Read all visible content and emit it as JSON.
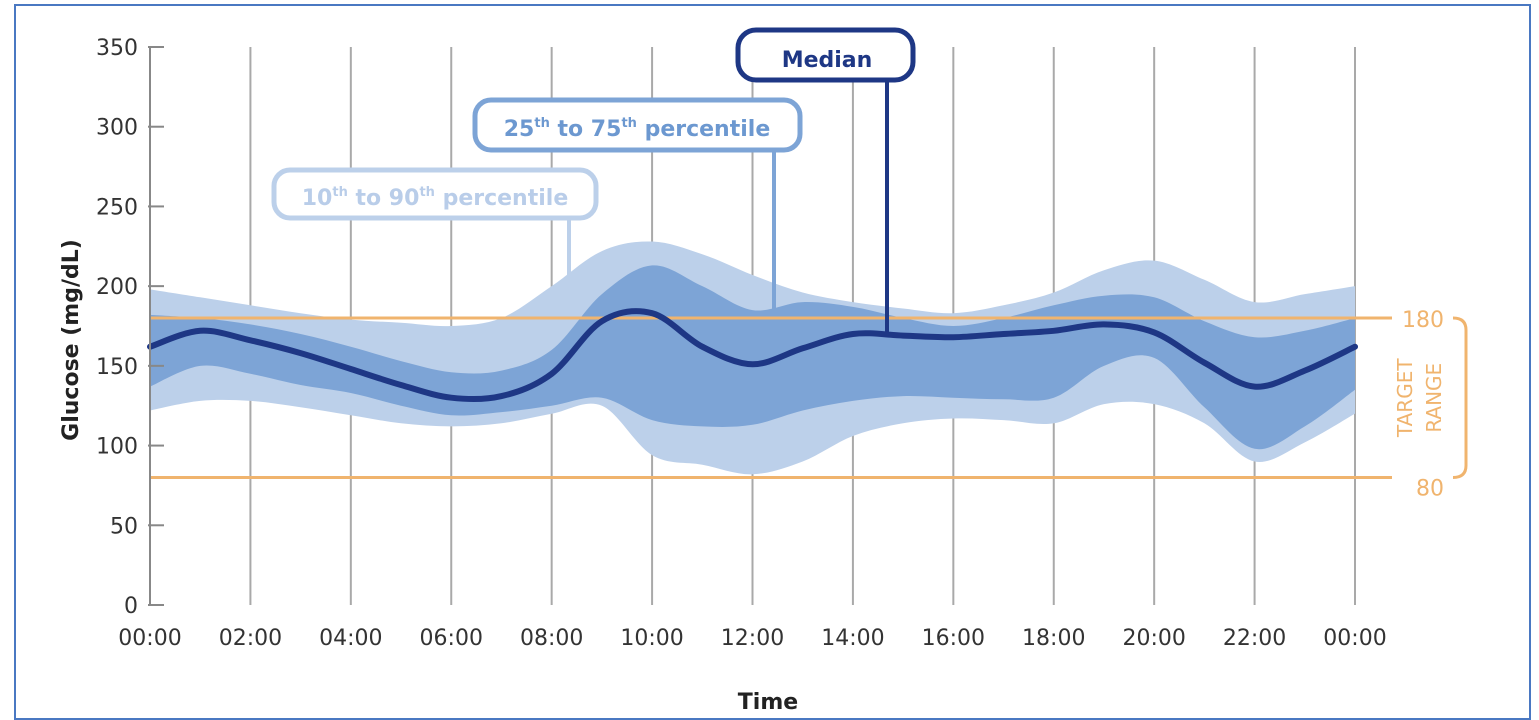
{
  "chart_data": {
    "type": "area",
    "xlabel": "Time",
    "ylabel": "Glucose (mg/dL)",
    "ylim": [
      0,
      350
    ],
    "yticks": [
      "0",
      "50",
      "100",
      "150",
      "200",
      "250",
      "300",
      "350"
    ],
    "xticks": [
      "00:00",
      "02:00",
      "04:00",
      "06:00",
      "08:00",
      "10:00",
      "12:00",
      "14:00",
      "16:00",
      "18:00",
      "20:00",
      "22:00",
      "00:00"
    ],
    "grid": "vertical",
    "x_hours": [
      0,
      1,
      2,
      3,
      4,
      5,
      6,
      7,
      8,
      9,
      10,
      11,
      12,
      13,
      14,
      15,
      16,
      17,
      18,
      19,
      20,
      21,
      22,
      23,
      24
    ],
    "series": [
      {
        "name": "10th to 90th percentile",
        "color": "#bcd0ea",
        "upper": [
          198,
          193,
          188,
          183,
          179,
          177,
          175,
          180,
          200,
          222,
          228,
          220,
          207,
          196,
          190,
          186,
          183,
          188,
          196,
          210,
          216,
          204,
          190,
          195,
          200
        ],
        "lower": [
          122,
          128,
          128,
          124,
          119,
          114,
          112,
          114,
          120,
          125,
          94,
          88,
          82,
          90,
          106,
          114,
          117,
          116,
          114,
          126,
          126,
          114,
          90,
          102,
          120
        ]
      },
      {
        "name": "25th to 75th percentile",
        "color": "#7da4d6",
        "upper": [
          182,
          180,
          176,
          170,
          162,
          153,
          146,
          147,
          160,
          195,
          213,
          200,
          185,
          190,
          187,
          180,
          175,
          180,
          188,
          194,
          193,
          178,
          168,
          172,
          180
        ],
        "lower": [
          137,
          150,
          145,
          138,
          133,
          125,
          119,
          121,
          125,
          130,
          116,
          112,
          113,
          122,
          128,
          131,
          130,
          129,
          130,
          150,
          155,
          124,
          98,
          112,
          135
        ]
      },
      {
        "name": "Median",
        "color": "#1e3785",
        "values": [
          162,
          172,
          166,
          158,
          148,
          138,
          130,
          131,
          145,
          178,
          183,
          162,
          151,
          161,
          170,
          169,
          168,
          170,
          172,
          176,
          171,
          152,
          137,
          147,
          162
        ]
      }
    ],
    "target_range": {
      "label_line1": "TARGET",
      "label_line2": "RANGE",
      "high": 180,
      "low": 80,
      "high_label": "180",
      "low_label": "80",
      "color": "#f0b46e"
    },
    "annotations": {
      "median": "Median",
      "p25_75_prefix": "25",
      "p25_75_sup1": "th",
      "p25_75_mid": " to 75",
      "p25_75_sup2": "th",
      "p25_75_suffix": " percentile",
      "p10_90_prefix": "10",
      "p10_90_sup1": "th",
      "p10_90_mid": " to 90",
      "p10_90_sup2": "th",
      "p10_90_suffix": " percentile"
    }
  }
}
